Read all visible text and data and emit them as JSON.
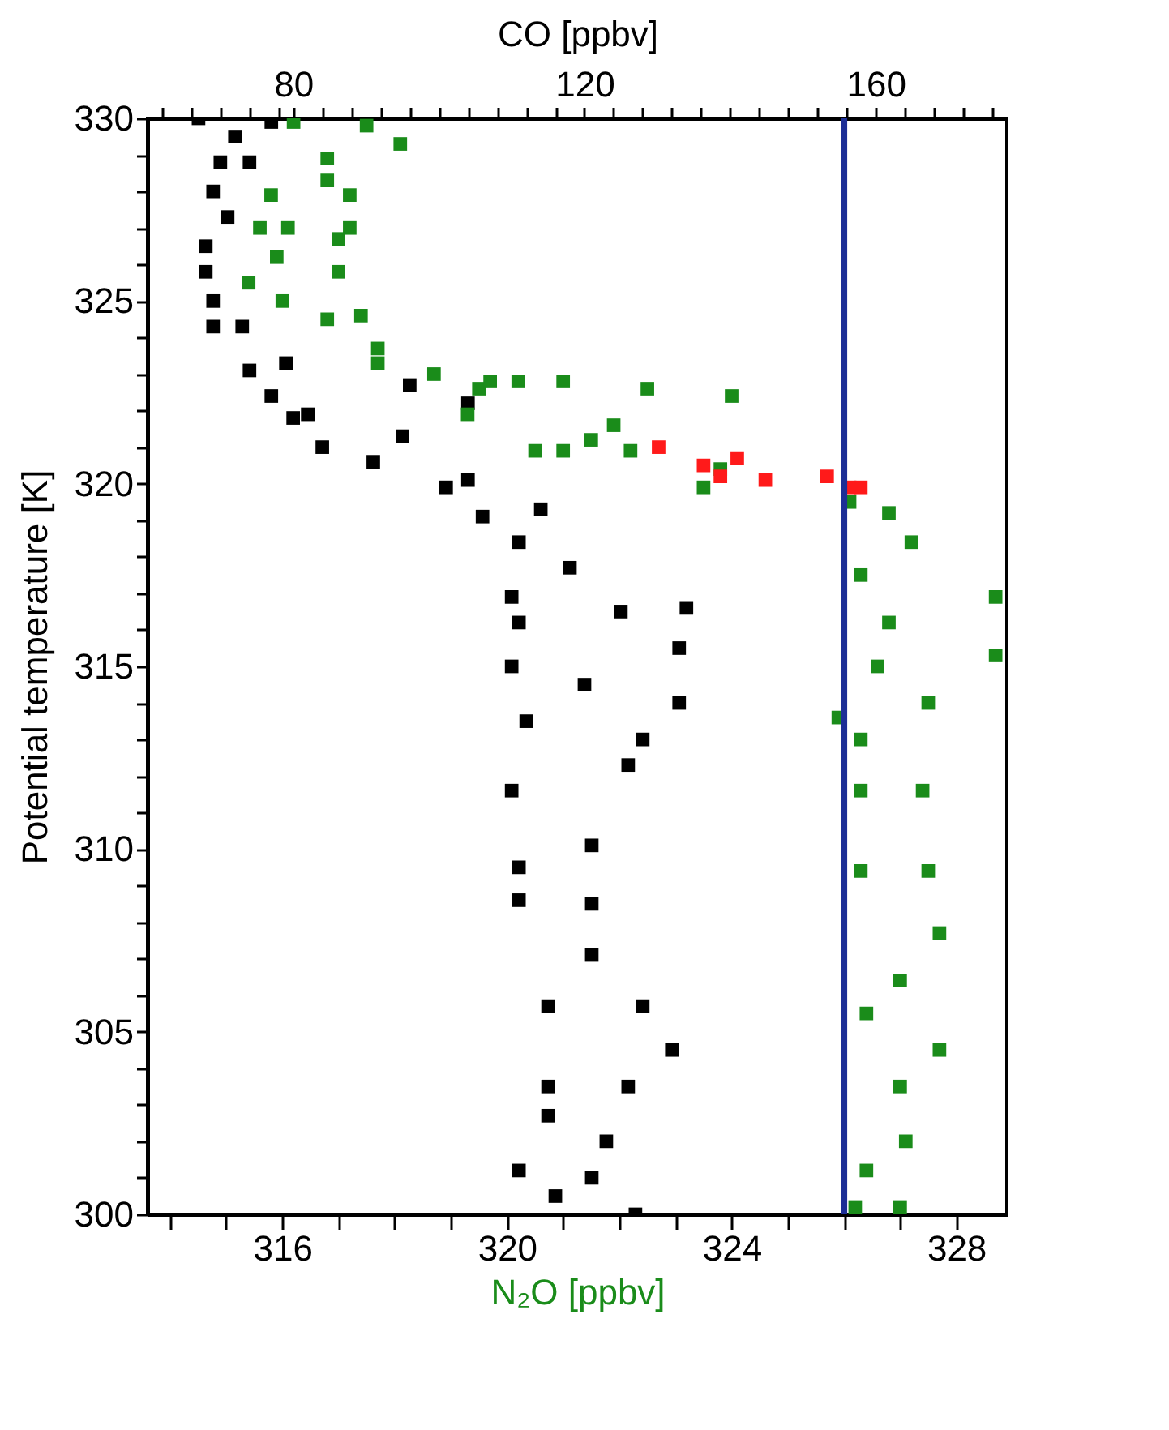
{
  "chart_data": {
    "type": "scatter",
    "xlabel": "N₂O [ppbv]",
    "x2label": "CO [ppbv]",
    "ylabel": "Potential temperature [K]",
    "xlim": [
      313.6,
      328.9
    ],
    "xticks": [
      {
        "value": 314,
        "label": null
      },
      {
        "value": 315,
        "label": null
      },
      316,
      {
        "value": 317,
        "label": null
      },
      {
        "value": 318,
        "label": null
      },
      {
        "value": 319,
        "label": null
      },
      320,
      {
        "value": 321,
        "label": null
      },
      {
        "value": 322,
        "label": null
      },
      {
        "value": 323,
        "label": null
      },
      324,
      {
        "value": 325,
        "label": null
      },
      {
        "value": 326,
        "label": null
      },
      {
        "value": 327,
        "label": null
      },
      328
    ],
    "x2lim": [
      60,
      178
    ],
    "x2ticks": [
      {
        "value": 62,
        "label": null
      },
      {
        "value": 66,
        "label": null
      },
      {
        "value": 70,
        "label": null
      },
      {
        "value": 74,
        "label": null
      },
      {
        "value": 78,
        "label": null
      },
      80,
      {
        "value": 84,
        "label": null
      },
      {
        "value": 88,
        "label": null
      },
      {
        "value": 92,
        "label": null
      },
      {
        "value": 96,
        "label": null
      },
      {
        "value": 100,
        "label": null
      },
      {
        "value": 104,
        "label": null
      },
      {
        "value": 108,
        "label": null
      },
      {
        "value": 112,
        "label": null
      },
      {
        "value": 116,
        "label": null
      },
      120,
      {
        "value": 124,
        "label": null
      },
      {
        "value": 128,
        "label": null
      },
      {
        "value": 132,
        "label": null
      },
      {
        "value": 136,
        "label": null
      },
      {
        "value": 140,
        "label": null
      },
      {
        "value": 144,
        "label": null
      },
      {
        "value": 148,
        "label": null
      },
      {
        "value": 152,
        "label": null
      },
      {
        "value": 156,
        "label": null
      },
      160,
      {
        "value": 164,
        "label": null
      },
      {
        "value": 168,
        "label": null
      },
      {
        "value": 172,
        "label": null
      },
      {
        "value": 176,
        "label": null
      }
    ],
    "ylim": [
      300,
      330
    ],
    "yticks": [
      300,
      {
        "value": 301,
        "label": null
      },
      {
        "value": 302,
        "label": null
      },
      {
        "value": 303,
        "label": null
      },
      {
        "value": 304,
        "label": null
      },
      305,
      {
        "value": 306,
        "label": null
      },
      {
        "value": 307,
        "label": null
      },
      {
        "value": 308,
        "label": null
      },
      {
        "value": 309,
        "label": null
      },
      310,
      {
        "value": 311,
        "label": null
      },
      {
        "value": 312,
        "label": null
      },
      {
        "value": 313,
        "label": null
      },
      {
        "value": 314,
        "label": null
      },
      315,
      {
        "value": 316,
        "label": null
      },
      {
        "value": 317,
        "label": null
      },
      {
        "value": 318,
        "label": null
      },
      {
        "value": 319,
        "label": null
      },
      320,
      {
        "value": 321,
        "label": null
      },
      {
        "value": 322,
        "label": null
      },
      {
        "value": 323,
        "label": null
      },
      {
        "value": 324,
        "label": null
      },
      325,
      {
        "value": 326,
        "label": null
      },
      {
        "value": 327,
        "label": null
      },
      {
        "value": 328,
        "label": null
      },
      {
        "value": 329,
        "label": null
      },
      330
    ],
    "marker": "square",
    "series": [
      {
        "color": "#000000",
        "axis": "x2",
        "x": [
          67,
          77,
          72,
          70,
          74,
          69,
          71,
          68,
          68,
          69,
          69,
          73,
          74,
          79,
          77,
          96,
          104,
          82,
          80,
          95,
          84,
          91,
          104,
          101,
          106,
          114,
          111,
          118,
          110,
          134,
          111,
          125,
          133,
          110,
          120,
          133,
          112,
          128,
          126,
          110,
          121,
          111,
          121,
          111,
          121,
          128,
          115,
          132,
          126,
          115,
          115,
          123,
          121,
          111,
          116,
          127
        ],
        "values": [
          330,
          329.9,
          329.5,
          328.8,
          328.8,
          328,
          327.3,
          326.5,
          325.8,
          325,
          324.3,
          324.3,
          323.1,
          323.3,
          322.4,
          322.7,
          322.2,
          321.9,
          321.8,
          321.3,
          321,
          320.6,
          320.1,
          319.9,
          319.1,
          319.3,
          318.4,
          317.7,
          316.9,
          316.6,
          316.2,
          316.5,
          315.5,
          315,
          314.5,
          314,
          313.5,
          313,
          312.3,
          311.6,
          310.1,
          309.5,
          308.5,
          308.6,
          307.1,
          305.7,
          305.7,
          304.5,
          303.5,
          303.5,
          302.7,
          302,
          301,
          301.2,
          300.5,
          300
        ]
      },
      {
        "color": "#1a8c1a",
        "x": [
          316.2,
          317.5,
          318.1,
          316.8,
          316.8,
          315.8,
          315.6,
          316.1,
          315.9,
          315.4,
          316,
          316.8,
          317.7,
          318.7,
          319.5,
          317.2,
          317.2,
          317,
          317,
          317.4,
          317.7,
          319.7,
          320.2,
          321,
          322.5,
          324,
          319.3,
          321.5,
          320.5,
          321,
          322.2,
          321.9,
          323.8,
          323.5,
          326.8,
          326.1,
          327.2,
          326.3,
          328.7,
          326.8,
          328.7,
          326.6,
          327.5,
          325.9,
          326.3,
          326.3,
          327.4,
          326.3,
          327.5,
          327.7,
          327,
          326.4,
          327.7,
          327,
          327.1,
          326.4,
          326.2,
          327
        ],
        "values": [
          329.9,
          329.8,
          329.3,
          328.9,
          328.3,
          327.9,
          327,
          327,
          326.2,
          325.5,
          325,
          324.5,
          323.7,
          323,
          322.6,
          327.9,
          327,
          326.7,
          325.8,
          324.6,
          323.3,
          322.8,
          322.8,
          322.8,
          322.6,
          322.4,
          321.9,
          321.2,
          320.9,
          320.9,
          320.9,
          321.6,
          320.4,
          319.9,
          319.2,
          319.5,
          318.4,
          317.5,
          316.9,
          316.2,
          315.3,
          315,
          314,
          313.6,
          313,
          311.6,
          311.6,
          309.4,
          309.4,
          307.7,
          306.4,
          305.5,
          304.5,
          303.5,
          302,
          301.2,
          300.2,
          300.2
        ]
      },
      {
        "color": "#ff1a1a",
        "x": [
          322.7,
          323.5,
          324.1,
          323.8,
          324.6,
          325.7,
          326.1,
          326.3
        ],
        "values": [
          321,
          320.5,
          320.7,
          320.2,
          320.1,
          320.2,
          319.9,
          319.9
        ]
      }
    ],
    "ref_lines": [
      {
        "axis": "x",
        "value": 326,
        "color": "#1c2e96"
      }
    ]
  }
}
